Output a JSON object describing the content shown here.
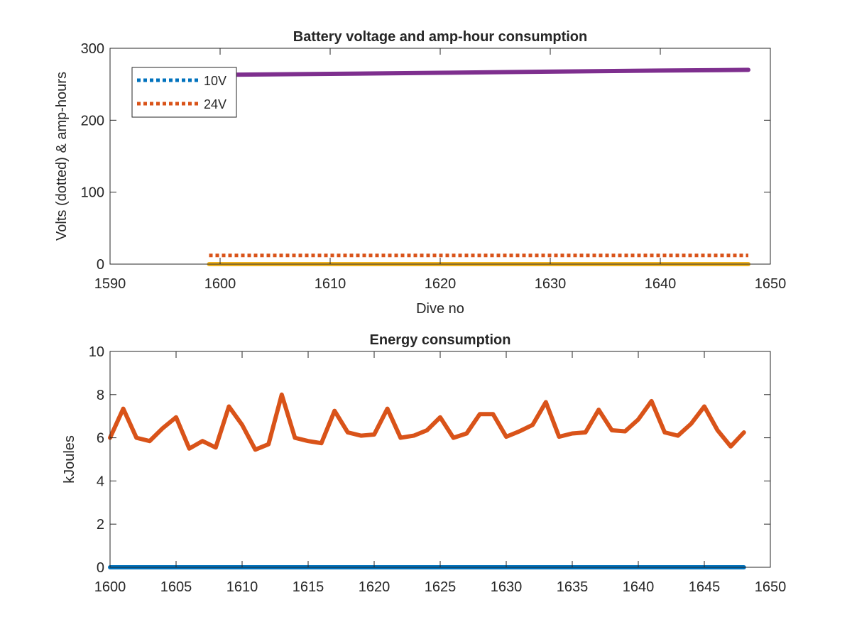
{
  "chart_data": [
    {
      "type": "line",
      "title": "Battery voltage and amp-hour consumption",
      "xlabel": "Dive no",
      "ylabel": "Volts (dotted) & amp-hours",
      "xlim": [
        1590,
        1650
      ],
      "ylim": [
        0,
        300
      ],
      "x_ticks": [
        1590,
        1600,
        1610,
        1620,
        1630,
        1640,
        1650
      ],
      "y_ticks": [
        0,
        100,
        200,
        300
      ],
      "grid": false,
      "legend_position": "top-left",
      "series": [
        {
          "name": "10V",
          "style": "dotted",
          "color": "#0072BD",
          "x": [
            1599,
            1648
          ],
          "y": [
            0,
            0
          ]
        },
        {
          "name": "24V",
          "style": "dotted",
          "color": "#D95319",
          "x": [
            1599,
            1648
          ],
          "y": [
            12,
            12
          ]
        },
        {
          "style": "solid",
          "color": "#EDB120",
          "x": [
            1599,
            1648
          ],
          "y": [
            0,
            0
          ]
        },
        {
          "style": "solid",
          "color": "#7E2F8E",
          "x": [
            1599,
            1610,
            1620,
            1630,
            1640,
            1648
          ],
          "y": [
            263,
            264.5,
            266,
            267.5,
            269,
            270
          ]
        }
      ]
    },
    {
      "type": "line",
      "title": "Energy consumption",
      "xlabel": "",
      "ylabel": "kJoules",
      "xlim": [
        1600,
        1650
      ],
      "ylim": [
        0,
        10
      ],
      "x_ticks": [
        1600,
        1605,
        1610,
        1615,
        1620,
        1625,
        1630,
        1635,
        1640,
        1645,
        1650
      ],
      "y_ticks": [
        0,
        2,
        4,
        6,
        8,
        10
      ],
      "grid": false,
      "series": [
        {
          "style": "solid",
          "color": "#0072BD",
          "x": [
            1600,
            1648
          ],
          "y": [
            0,
            0
          ]
        },
        {
          "style": "solid",
          "color": "#D95319",
          "x": [
            1600,
            1601,
            1602,
            1603,
            1604,
            1605,
            1606,
            1607,
            1608,
            1609,
            1610,
            1611,
            1612,
            1613,
            1614,
            1615,
            1616,
            1617,
            1618,
            1619,
            1620,
            1621,
            1622,
            1623,
            1624,
            1625,
            1626,
            1627,
            1628,
            1629,
            1630,
            1631,
            1632,
            1633,
            1634,
            1635,
            1636,
            1637,
            1638,
            1639,
            1640,
            1641,
            1642,
            1643,
            1644,
            1645,
            1646,
            1647,
            1648
          ],
          "y": [
            6.0,
            7.35,
            6.0,
            5.85,
            6.45,
            6.95,
            5.5,
            5.85,
            5.55,
            7.45,
            6.6,
            5.45,
            5.7,
            8.0,
            6.0,
            5.85,
            5.75,
            7.25,
            6.25,
            6.1,
            6.15,
            7.35,
            6.0,
            6.1,
            6.35,
            6.95,
            6.0,
            6.2,
            7.1,
            7.1,
            6.05,
            6.3,
            6.6,
            7.65,
            6.05,
            6.2,
            6.25,
            7.3,
            6.35,
            6.3,
            6.85,
            7.7,
            6.25,
            6.1,
            6.65,
            7.45,
            6.35,
            5.6,
            6.25
          ]
        }
      ]
    }
  ]
}
